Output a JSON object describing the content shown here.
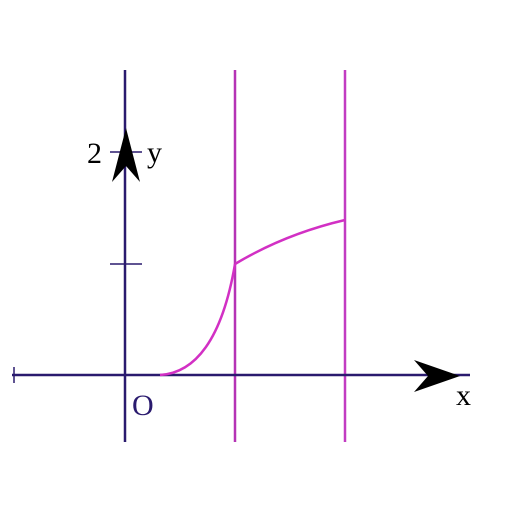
{
  "labels": {
    "y_tick": "2",
    "y_axis": "y",
    "origin": "O",
    "x_axis": "x"
  }
}
